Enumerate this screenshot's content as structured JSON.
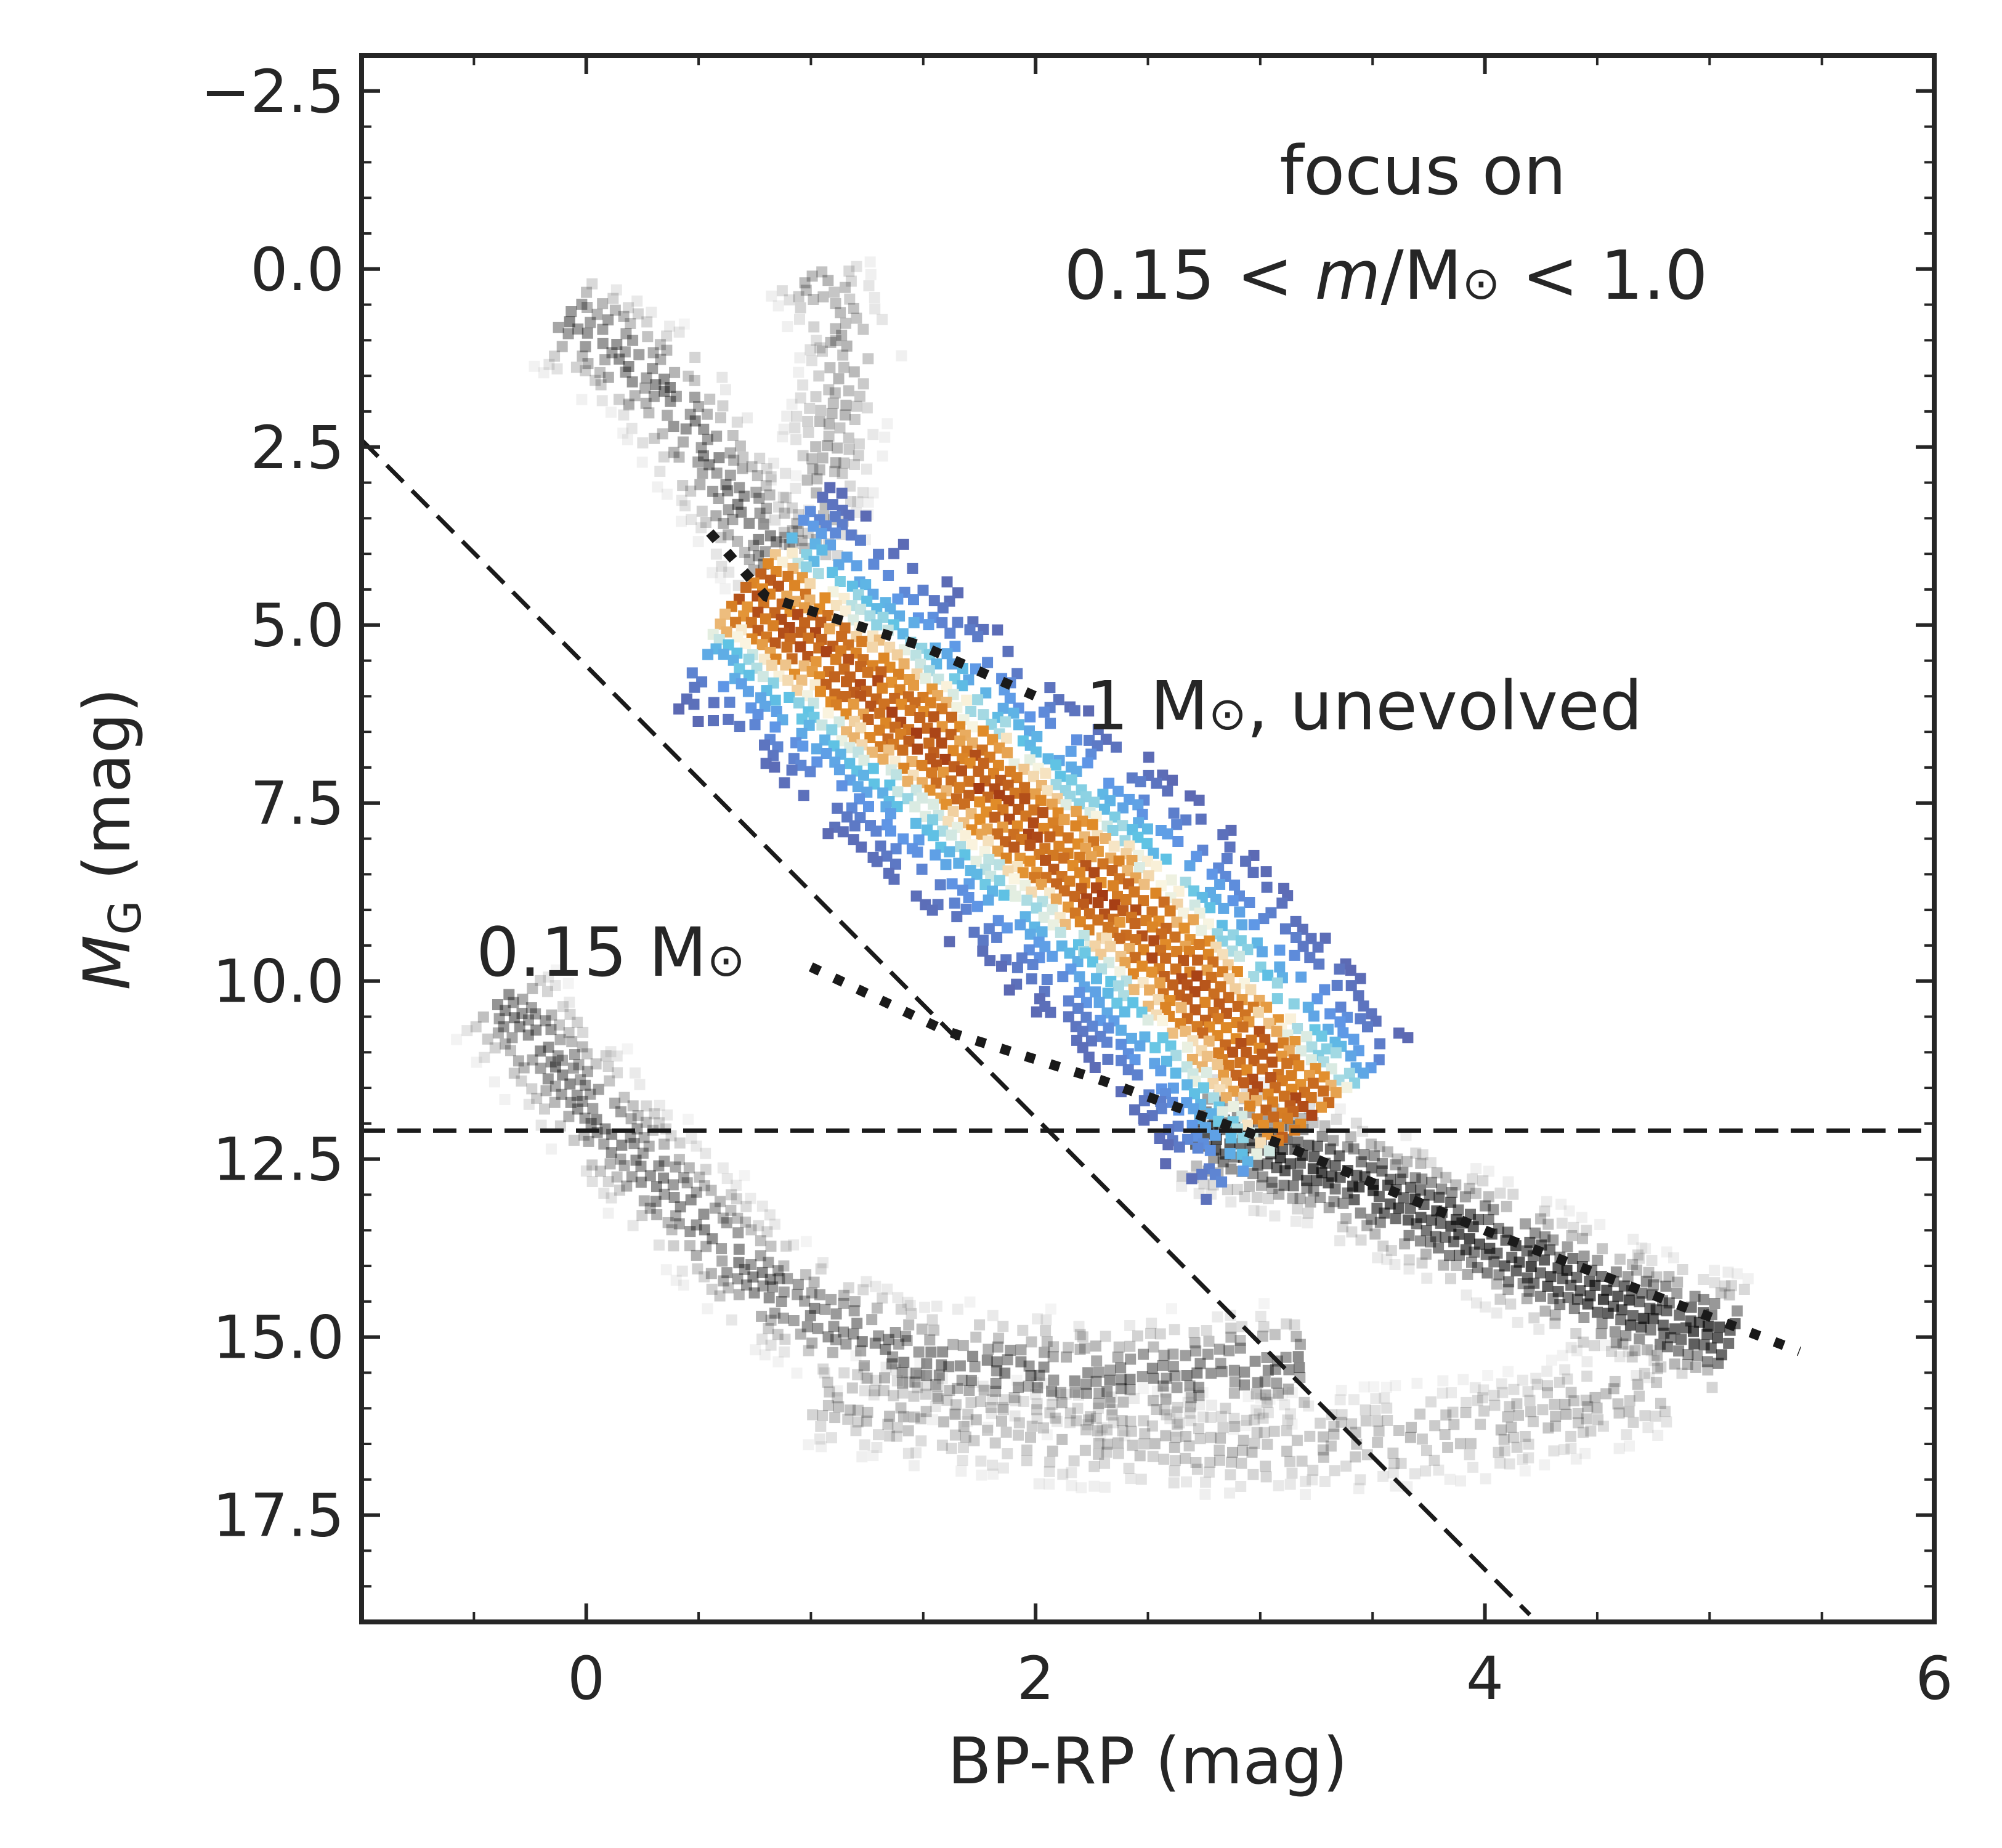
{
  "chart_data": {
    "type": "heatmap",
    "title": "",
    "xlabel": {
      "text": "BP-RP (mag)"
    },
    "ylabel": {
      "main": "M",
      "sub": "G",
      "unit": " (mag)"
    },
    "xlim": [
      -1,
      6
    ],
    "ylim": [
      19,
      -3
    ],
    "y_inverted": true,
    "grid": false,
    "x_ticks": [
      0,
      2,
      4,
      6
    ],
    "x_tick_labels": [
      "0",
      "2",
      "4",
      "6"
    ],
    "y_ticks": [
      -2.5,
      0,
      2.5,
      5,
      7.5,
      10,
      12.5,
      15,
      17.5
    ],
    "y_tick_labels": [
      "−2.5",
      "0.0",
      "2.5",
      "5.0",
      "7.5",
      "10.0",
      "12.5",
      "15.0",
      "17.5"
    ],
    "colors": {
      "background_density": "#000000",
      "selected_density_low": "#5b5ea6",
      "selected_density_mid": "#5fc3e4",
      "selected_density_peak": "#a33a14",
      "guide_lines": "#1a1a1a"
    },
    "density_components": [
      {
        "name": "white-dwarf-sequence",
        "region": "background",
        "path": [
          [
            -0.4,
            10.2
          ],
          [
            0.2,
            12.4
          ],
          [
            0.8,
            14.3
          ],
          [
            1.4,
            15.2
          ],
          [
            2.2,
            15.5
          ],
          [
            3.2,
            15.3
          ]
        ],
        "peak": 0.55
      },
      {
        "name": "lower-main-sequence",
        "region": "background",
        "path": [
          [
            2.7,
            12.0
          ],
          [
            3.3,
            12.6
          ],
          [
            4.0,
            13.6
          ],
          [
            4.6,
            14.5
          ],
          [
            5.1,
            15.0
          ]
        ],
        "peak": 0.85
      },
      {
        "name": "lower-cloud",
        "region": "background",
        "path": [
          [
            1.0,
            15.8
          ],
          [
            2.0,
            16.3
          ],
          [
            3.0,
            16.5
          ],
          [
            4.0,
            16.2
          ],
          [
            4.8,
            15.6
          ]
        ],
        "peak": 0.3
      },
      {
        "name": "upper-main-sequence-turnoff",
        "region": "background",
        "path": [
          [
            -0.1,
            0.6
          ],
          [
            0.3,
            1.5
          ],
          [
            0.6,
            2.9
          ],
          [
            0.85,
            4.1
          ]
        ],
        "peak": 0.55
      },
      {
        "name": "red-giant-branch",
        "region": "background",
        "path": [
          [
            1.0,
            0.0
          ],
          [
            1.15,
            1.0
          ],
          [
            1.05,
            2.6
          ],
          [
            0.95,
            4.0
          ]
        ],
        "peak": 0.35
      },
      {
        "name": "selected-main-sequence",
        "region": "selected",
        "path": [
          [
            0.7,
            4.4
          ],
          [
            1.2,
            5.7
          ],
          [
            1.8,
            7.4
          ],
          [
            2.4,
            9.0
          ],
          [
            2.9,
            10.8
          ],
          [
            3.2,
            12.0
          ]
        ],
        "peak": 1.0
      }
    ],
    "guide_lines": [
      {
        "name": "lower-cut-line",
        "style": "dashed",
        "points": [
          [
            -1,
            12.1
          ],
          [
            6,
            12.1
          ]
        ]
      },
      {
        "name": "diagonal-cut-line",
        "style": "dashed",
        "points": [
          [
            -1,
            2.4
          ],
          [
            4.2,
            18.9
          ]
        ]
      },
      {
        "name": "one-msun-unevolved-line",
        "style": "dotted",
        "points": [
          [
            0.55,
            3.7
          ],
          [
            0.8,
            4.6
          ],
          [
            1.5,
            5.3
          ],
          [
            2.0,
            6.0
          ]
        ]
      },
      {
        "name": "low-mass-line",
        "style": "dotted",
        "points": [
          [
            1.0,
            9.8
          ],
          [
            1.6,
            10.7
          ],
          [
            2.3,
            11.4
          ],
          [
            3.1,
            12.3
          ],
          [
            4.0,
            13.5
          ],
          [
            5.4,
            15.2
          ]
        ]
      }
    ],
    "annotations": [
      {
        "name": "focus-annotation-line1",
        "text": "focus on",
        "x": 3.8,
        "y": -1.3
      },
      {
        "name": "focus-annotation-line2",
        "text": "0.15 < m/M⊙ < 1.0",
        "x": 3.5,
        "y": 0.1,
        "parts": {
          "a": "0.15 < ",
          "m": "m",
          "b": "/M",
          "sun": "⊙",
          "c": " < 1.0"
        }
      },
      {
        "name": "one-msun-label",
        "text": "1 M⊙, unevolved",
        "x": 2.25,
        "y": 6.1,
        "parts": {
          "a": "1 M",
          "sun": "⊙",
          "b": ", unevolved"
        }
      },
      {
        "name": "low-mass-label",
        "text": "0.15 M⊙",
        "x": -0.5,
        "y": 10.1,
        "parts": {
          "a": "0.15 M",
          "sun": "⊙"
        }
      }
    ]
  }
}
